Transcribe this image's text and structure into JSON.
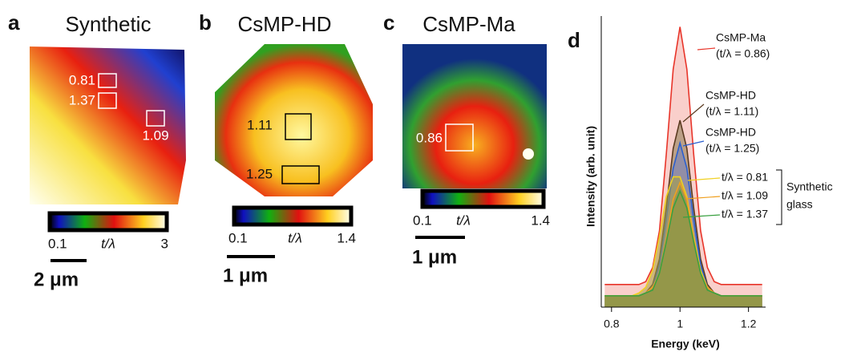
{
  "panels": [
    {
      "letter": "a",
      "title": "Synthetic",
      "boxes": [
        "0.81",
        "1.37",
        "1.09"
      ],
      "colorbar": {
        "min": "0.1",
        "label": "t/λ",
        "max": "3"
      },
      "scale_bar": "2 μm"
    },
    {
      "letter": "b",
      "title": "CsMP-HD",
      "boxes": [
        "1.11",
        "1.25"
      ],
      "colorbar": {
        "min": "0.1",
        "label": "t/λ",
        "max": "1.4"
      },
      "scale_bar": "1 μm"
    },
    {
      "letter": "c",
      "title": "CsMP-Ma",
      "boxes": [
        "0.86"
      ],
      "colorbar": {
        "min": "0.1",
        "label": "t/λ",
        "max": "1.4"
      },
      "scale_bar": "1 μm"
    }
  ],
  "chart_data": {
    "type": "area",
    "letter": "d",
    "x_label": "Energy (keV)",
    "y_label": "Intensity (arb. unit)",
    "x": [
      0.78,
      0.8,
      0.82,
      0.84,
      0.86,
      0.88,
      0.9,
      0.92,
      0.94,
      0.96,
      0.98,
      1.0,
      1.02,
      1.04,
      1.06,
      1.08,
      1.1,
      1.12,
      1.14,
      1.16,
      1.18,
      1.2,
      1.22,
      1.24
    ],
    "xlim": [
      0.77,
      1.25
    ],
    "xticks": [
      0.8,
      1,
      1.2
    ],
    "ylim": [
      0,
      100
    ],
    "series": [
      {
        "name": "CsMP-Ma",
        "detail": "(t/λ = 0.86)",
        "color": "#e8352a",
        "fill": "#f4a8a0",
        "values": [
          8,
          8,
          8,
          8,
          8,
          8,
          9,
          14,
          27,
          54,
          84,
          99,
          84,
          54,
          27,
          14,
          9,
          8,
          8,
          8,
          8,
          8,
          8,
          8
        ]
      },
      {
        "name": "CsMP-HD",
        "detail": "(t/λ = 1.11)",
        "color": "#5a3a20",
        "fill": "#8a7a50",
        "values": [
          4,
          4,
          4,
          4,
          4,
          4,
          5,
          8,
          17,
          35,
          56,
          66,
          56,
          35,
          17,
          8,
          5,
          4,
          4,
          4,
          4,
          4,
          4,
          4
        ]
      },
      {
        "name": "CsMP-HD",
        "detail": "(t/λ = 1.25)",
        "color": "#2a5fd0",
        "fill": "#7080c0",
        "values": [
          4,
          4,
          4,
          4,
          4,
          4,
          5,
          7,
          15,
          31,
          49,
          58,
          49,
          31,
          15,
          7,
          5,
          4,
          4,
          4,
          4,
          4,
          4,
          4
        ]
      },
      {
        "name": "t/λ = 0.81",
        "color": "#f0d020",
        "fill": "#a8a040",
        "values": [
          4,
          4,
          4,
          4,
          4,
          5,
          7,
          13,
          25,
          39,
          46,
          46,
          39,
          25,
          13,
          7,
          5,
          4,
          4,
          4,
          4,
          4,
          4,
          4
        ]
      },
      {
        "name": "t/λ = 1.09",
        "color": "#f0a020",
        "fill": "#a09040",
        "values": [
          4,
          4,
          4,
          4,
          4,
          4,
          5,
          7,
          12,
          24,
          38,
          44,
          38,
          24,
          12,
          7,
          5,
          4,
          4,
          4,
          4,
          4,
          4,
          4
        ]
      },
      {
        "name": "t/λ = 1.37",
        "color": "#3aa040",
        "fill": "#8a9a40",
        "values": [
          4,
          4,
          4,
          4,
          4,
          4,
          5,
          6,
          12,
          23,
          35,
          41,
          35,
          23,
          12,
          6,
          5,
          4,
          4,
          4,
          4,
          4,
          4,
          4
        ]
      }
    ],
    "group_label": [
      "Synthetic",
      "glass"
    ]
  }
}
